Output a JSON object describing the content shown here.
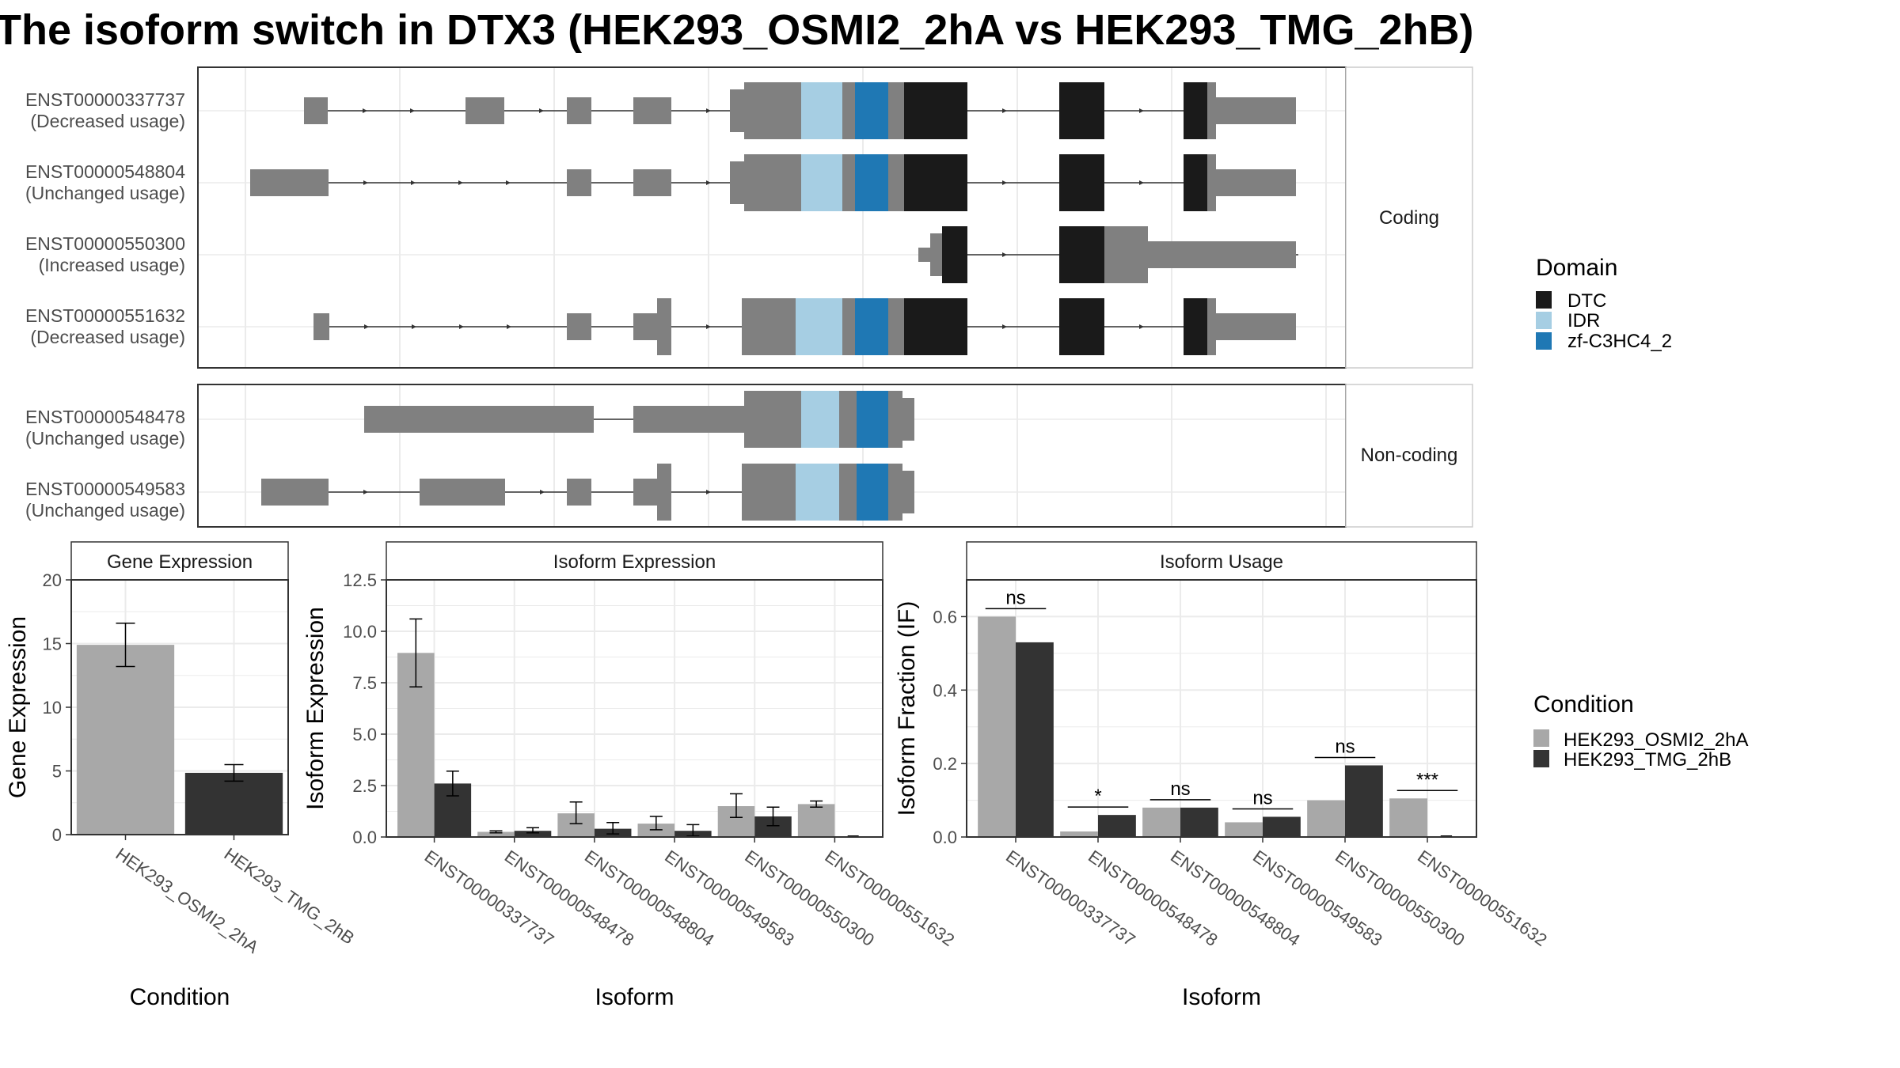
{
  "title": "The isoform switch in DTX3 (HEK293_OSMI2_2hA vs HEK293_TMG_2hB)",
  "colors": {
    "exon": "#808080",
    "intron": "#333333",
    "DTC": "#1a1a1a",
    "IDR": "#a6cee3",
    "zf": "#1f78b4",
    "cond1": "#a8a8a8",
    "cond2": "#333333",
    "panel_border": "#333333",
    "grid": "#ebebeb",
    "strip_bg": "#ffffff"
  },
  "domain_legend": {
    "title": "Domain",
    "items": [
      {
        "label": "DTC",
        "color_key": "DTC"
      },
      {
        "label": "IDR",
        "color_key": "IDR"
      },
      {
        "label": "zf-C3HC4_2",
        "color_key": "zf"
      }
    ]
  },
  "condition_legend": {
    "title": "Condition",
    "items": [
      {
        "label": "HEK293_OSMI2_2hA",
        "color_key": "cond1"
      },
      {
        "label": "HEK293_TMG_2hB",
        "color_key": "cond2"
      }
    ]
  },
  "structure": {
    "groups": [
      {
        "strip": "Coding",
        "isoforms": [
          {
            "id": "ENST00000337737",
            "usage": "(Decreased usage)"
          },
          {
            "id": "ENST00000548804",
            "usage": "(Unchanged usage)"
          },
          {
            "id": "ENST00000550300",
            "usage": "(Increased usage)"
          },
          {
            "id": "ENST00000551632",
            "usage": "(Decreased usage)"
          }
        ]
      },
      {
        "strip": "Non-coding",
        "isoforms": [
          {
            "id": "ENST00000548478",
            "usage": "(Unchanged usage)"
          },
          {
            "id": "ENST00000549583",
            "usage": "(Unchanged usage)"
          }
        ]
      }
    ]
  },
  "chart_data": [
    {
      "type": "bar",
      "strip": "Gene Expression",
      "xlabel": "Condition",
      "ylabel": "Gene Expression",
      "categories": [
        "HEK293_OSMI2_2hA",
        "HEK293_TMG_2hB"
      ],
      "values": [
        14.9,
        4.85
      ],
      "error_low": [
        13.2,
        4.2
      ],
      "error_high": [
        16.6,
        5.5
      ],
      "ylim": [
        0,
        20
      ],
      "ticks": [
        0,
        5,
        10,
        15,
        20
      ],
      "tick_labels": [
        "0",
        "5",
        "10",
        "15",
        "20"
      ]
    },
    {
      "type": "bar",
      "strip": "Isoform Expression",
      "xlabel": "Isoform",
      "ylabel": "Isoform Expression",
      "categories": [
        "ENST00000337737",
        "ENST00000548478",
        "ENST00000548804",
        "ENST00000549583",
        "ENST00000550300",
        "ENST00000551632"
      ],
      "series": [
        {
          "name": "HEK293_OSMI2_2hA",
          "values": [
            8.95,
            0.25,
            1.15,
            0.65,
            1.5,
            1.6
          ],
          "error_low": [
            7.3,
            0.2,
            0.65,
            0.35,
            0.95,
            1.45
          ],
          "error_high": [
            10.6,
            0.3,
            1.7,
            1.0,
            2.1,
            1.75
          ]
        },
        {
          "name": "HEK293_TMG_2hB",
          "values": [
            2.6,
            0.3,
            0.4,
            0.3,
            1.0,
            0.0
          ],
          "error_low": [
            2.0,
            0.2,
            0.15,
            0.05,
            0.55,
            0.0
          ],
          "error_high": [
            3.2,
            0.45,
            0.7,
            0.6,
            1.45,
            0.0
          ]
        }
      ],
      "ylim": [
        0,
        12.5
      ],
      "ticks": [
        0,
        2.5,
        5,
        7.5,
        10,
        12.5
      ],
      "tick_labels": [
        "0.0",
        "2.5",
        "5.0",
        "7.5",
        "10.0",
        "12.5"
      ]
    },
    {
      "type": "bar",
      "strip": "Isoform Usage",
      "xlabel": "Isoform",
      "ylabel": "Isoform Fraction (IF)",
      "categories": [
        "ENST00000337737",
        "ENST00000548478",
        "ENST00000548804",
        "ENST00000549583",
        "ENST00000550300",
        "ENST00000551632"
      ],
      "series": [
        {
          "name": "HEK293_OSMI2_2hA",
          "values": [
            0.6,
            0.015,
            0.08,
            0.04,
            0.1,
            0.105
          ]
        },
        {
          "name": "HEK293_TMG_2hB",
          "values": [
            0.53,
            0.06,
            0.08,
            0.055,
            0.195,
            0.0
          ]
        }
      ],
      "significance": [
        "ns",
        "*",
        "ns",
        "ns",
        "ns",
        "***"
      ],
      "ylim": [
        0,
        0.7
      ],
      "ticks": [
        0,
        0.2,
        0.4,
        0.6
      ],
      "tick_labels": [
        "0.0",
        "0.2",
        "0.4",
        "0.6"
      ]
    }
  ]
}
